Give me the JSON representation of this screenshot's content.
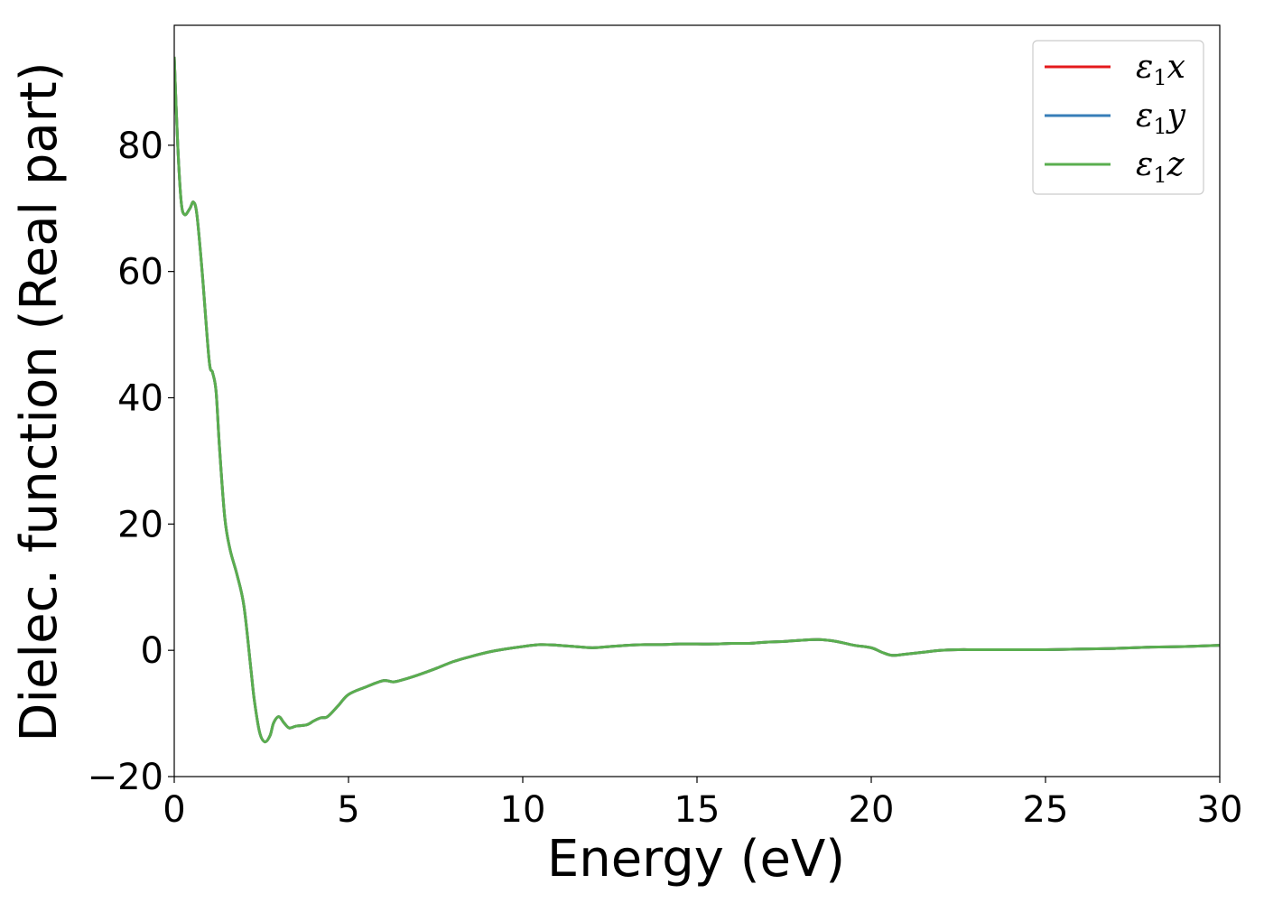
{
  "chart_data": {
    "type": "line",
    "title": "",
    "xlabel": "Energy (eV)",
    "ylabel": "Dielec. function (Real part)",
    "xlim": [
      0,
      30
    ],
    "ylim": [
      -20,
      99
    ],
    "xticks": [
      "0",
      "5",
      "10",
      "15",
      "20",
      "25",
      "30"
    ],
    "yticks": [
      "−20",
      "0",
      "20",
      "40",
      "60",
      "80"
    ],
    "xtick_values": [
      0,
      5,
      10,
      15,
      20,
      25,
      30
    ],
    "ytick_values": [
      -20,
      0,
      20,
      40,
      60,
      80
    ],
    "grid": false,
    "legend_position": "top-right",
    "x": [
      0.0,
      0.1,
      0.2,
      0.3,
      0.45,
      0.55,
      0.65,
      0.8,
      1.0,
      1.1,
      1.2,
      1.3,
      1.45,
      1.6,
      1.8,
      2.0,
      2.2,
      2.3,
      2.45,
      2.6,
      2.75,
      2.85,
      3.0,
      3.15,
      3.3,
      3.5,
      3.8,
      4.0,
      4.2,
      4.4,
      4.7,
      5.0,
      5.5,
      6.0,
      6.3,
      6.6,
      7.0,
      7.5,
      8.0,
      8.5,
      9.0,
      9.5,
      10.0,
      10.5,
      11.0,
      11.5,
      12.0,
      12.5,
      13.0,
      13.5,
      14.0,
      14.5,
      15.0,
      15.5,
      16.0,
      16.5,
      17.0,
      17.5,
      18.0,
      18.5,
      19.0,
      19.5,
      20.0,
      20.3,
      20.6,
      21.0,
      21.5,
      22.0,
      22.5,
      23.0,
      24.0,
      25.0,
      26.0,
      27.0,
      28.0,
      29.0,
      30.0
    ],
    "series": [
      {
        "name": "ε1x",
        "label_main": "ε",
        "label_sub": "1",
        "label_suffix": "x",
        "color": "#e41a1c",
        "values": [
          94,
          80,
          71,
          69,
          70,
          71,
          69,
          60,
          46,
          44,
          41,
          32,
          21,
          16,
          12,
          7,
          -3,
          -8,
          -13,
          -14.5,
          -13.5,
          -11.5,
          -10.5,
          -11.5,
          -12.3,
          -12,
          -11.8,
          -11.2,
          -10.7,
          -10.5,
          -8.8,
          -7,
          -5.8,
          -4.8,
          -5,
          -4.6,
          -3.9,
          -2.9,
          -1.8,
          -1,
          -0.3,
          0.2,
          0.6,
          0.9,
          0.8,
          0.6,
          0.4,
          0.6,
          0.8,
          0.9,
          0.9,
          1.0,
          1.0,
          1.0,
          1.1,
          1.1,
          1.3,
          1.4,
          1.6,
          1.7,
          1.4,
          0.8,
          0.4,
          -0.3,
          -0.8,
          -0.6,
          -0.3,
          0.0,
          0.1,
          0.1,
          0.1,
          0.1,
          0.2,
          0.3,
          0.5,
          0.6,
          0.8
        ]
      },
      {
        "name": "ε1y",
        "label_main": "ε",
        "label_sub": "1",
        "label_suffix": "y",
        "color": "#377eb8",
        "values": [
          94,
          80,
          71,
          69,
          70,
          71,
          69,
          60,
          46,
          44,
          41,
          32,
          21,
          16,
          12,
          7,
          -3,
          -8,
          -13,
          -14.5,
          -13.5,
          -11.5,
          -10.5,
          -11.5,
          -12.3,
          -12,
          -11.8,
          -11.2,
          -10.7,
          -10.5,
          -8.8,
          -7,
          -5.8,
          -4.8,
          -5,
          -4.6,
          -3.9,
          -2.9,
          -1.8,
          -1,
          -0.3,
          0.2,
          0.6,
          0.9,
          0.8,
          0.6,
          0.4,
          0.6,
          0.8,
          0.9,
          0.9,
          1.0,
          1.0,
          1.0,
          1.1,
          1.1,
          1.3,
          1.4,
          1.6,
          1.7,
          1.4,
          0.8,
          0.4,
          -0.3,
          -0.8,
          -0.6,
          -0.3,
          0.0,
          0.1,
          0.1,
          0.1,
          0.1,
          0.2,
          0.3,
          0.5,
          0.6,
          0.8
        ]
      },
      {
        "name": "ε1z",
        "label_main": "ε",
        "label_sub": "1",
        "label_suffix": "z",
        "color": "#5aae4f",
        "values": [
          94,
          80,
          71,
          69,
          70,
          71,
          69,
          60,
          46,
          44,
          41,
          32,
          21,
          16,
          12,
          7,
          -3,
          -8,
          -13,
          -14.5,
          -13.5,
          -11.5,
          -10.5,
          -11.5,
          -12.3,
          -12,
          -11.8,
          -11.2,
          -10.7,
          -10.5,
          -8.8,
          -7,
          -5.8,
          -4.8,
          -5,
          -4.6,
          -3.9,
          -2.9,
          -1.8,
          -1,
          -0.3,
          0.2,
          0.6,
          0.9,
          0.8,
          0.6,
          0.4,
          0.6,
          0.8,
          0.9,
          0.9,
          1.0,
          1.0,
          1.0,
          1.1,
          1.1,
          1.3,
          1.4,
          1.6,
          1.7,
          1.4,
          0.8,
          0.4,
          -0.3,
          -0.8,
          -0.6,
          -0.3,
          0.0,
          0.1,
          0.1,
          0.1,
          0.1,
          0.2,
          0.3,
          0.5,
          0.6,
          0.8
        ]
      }
    ]
  }
}
